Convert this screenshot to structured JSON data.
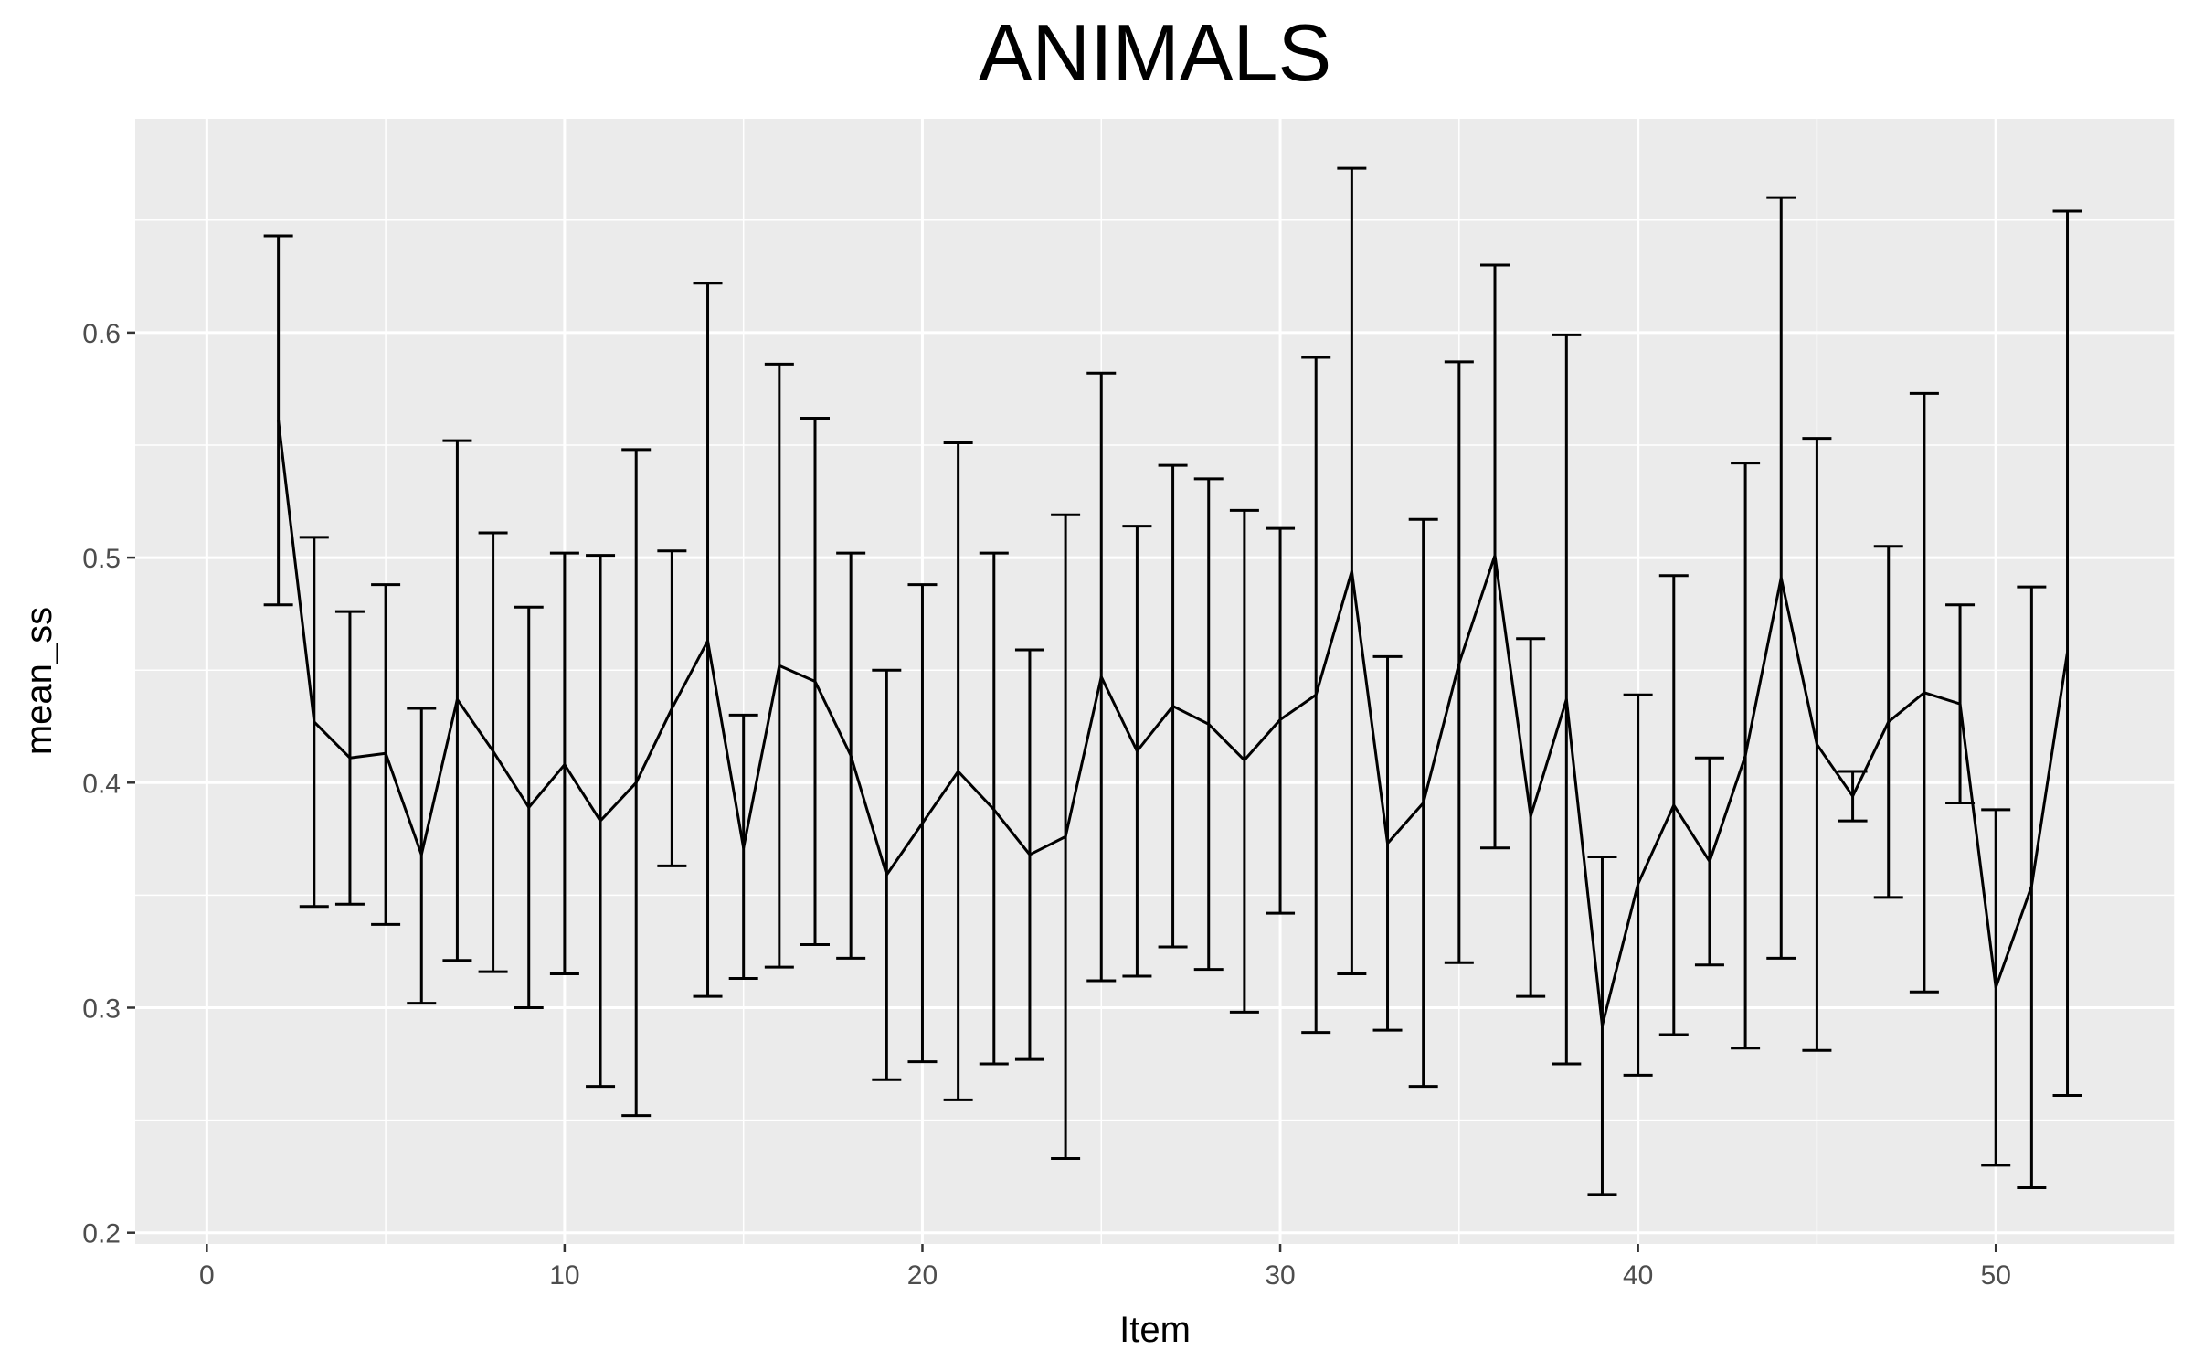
{
  "chart_data": {
    "type": "line",
    "title": "ANIMALS",
    "xlabel": "Item",
    "ylabel": "mean_ss",
    "xlim": [
      -2,
      55
    ],
    "ylim": [
      0.195,
      0.695
    ],
    "x_ticks": [
      0,
      10,
      20,
      30,
      40,
      50
    ],
    "x_tick_labels": [
      "0",
      "10",
      "20",
      "30",
      "40",
      "50"
    ],
    "y_ticks": [
      0.2,
      0.3,
      0.4,
      0.5,
      0.6
    ],
    "y_tick_labels": [
      "0.2",
      "0.3",
      "0.4",
      "0.5",
      "0.6"
    ],
    "grid": true,
    "legend": "none",
    "colors": {
      "panel": "#ebebeb",
      "grid": "#ffffff",
      "line": "#000000",
      "tick_text": "#4d4d4d"
    },
    "series": [
      {
        "x": [
          2,
          3,
          4,
          5,
          6,
          7,
          8,
          9,
          10,
          11,
          12,
          13,
          14,
          15,
          16,
          17,
          18,
          19,
          20,
          21,
          22,
          23,
          24,
          25,
          26,
          27,
          28,
          29,
          30,
          31,
          32,
          33,
          34,
          35,
          36,
          37,
          38,
          39,
          40,
          41,
          42,
          43,
          44,
          45,
          46,
          47,
          48,
          49,
          50,
          51,
          52
        ],
        "y": [
          0.561,
          0.427,
          0.411,
          0.413,
          0.368,
          0.437,
          0.414,
          0.389,
          0.408,
          0.383,
          0.4,
          0.433,
          0.463,
          0.371,
          0.452,
          0.445,
          0.412,
          0.359,
          0.382,
          0.405,
          0.388,
          0.368,
          0.376,
          0.447,
          0.414,
          0.434,
          0.426,
          0.41,
          0.428,
          0.439,
          0.494,
          0.373,
          0.391,
          0.453,
          0.501,
          0.385,
          0.437,
          0.292,
          0.355,
          0.39,
          0.365,
          0.412,
          0.491,
          0.417,
          0.394,
          0.427,
          0.44,
          0.435,
          0.309,
          0.354,
          0.458
        ],
        "upper": [
          0.643,
          0.509,
          0.476,
          0.488,
          0.433,
          0.552,
          0.511,
          0.478,
          0.502,
          0.501,
          0.548,
          0.503,
          0.622,
          0.43,
          0.586,
          0.562,
          0.502,
          0.45,
          0.488,
          0.551,
          0.502,
          0.459,
          0.519,
          0.582,
          0.514,
          0.541,
          0.535,
          0.521,
          0.513,
          0.589,
          0.673,
          0.456,
          0.517,
          0.587,
          0.63,
          0.464,
          0.599,
          0.367,
          0.439,
          0.492,
          0.411,
          0.542,
          0.66,
          0.553,
          0.405,
          0.505,
          0.573,
          0.479,
          0.388,
          0.487,
          0.654
        ],
        "lower": [
          0.479,
          0.345,
          0.346,
          0.337,
          0.302,
          0.321,
          0.316,
          0.3,
          0.315,
          0.265,
          0.252,
          0.363,
          0.305,
          0.313,
          0.318,
          0.328,
          0.322,
          0.268,
          0.276,
          0.259,
          0.275,
          0.277,
          0.233,
          0.312,
          0.314,
          0.327,
          0.317,
          0.298,
          0.342,
          0.289,
          0.315,
          0.29,
          0.265,
          0.32,
          0.371,
          0.305,
          0.275,
          0.217,
          0.27,
          0.288,
          0.319,
          0.282,
          0.322,
          0.281,
          0.383,
          0.349,
          0.307,
          0.391,
          0.23,
          0.22,
          0.261
        ]
      }
    ]
  }
}
